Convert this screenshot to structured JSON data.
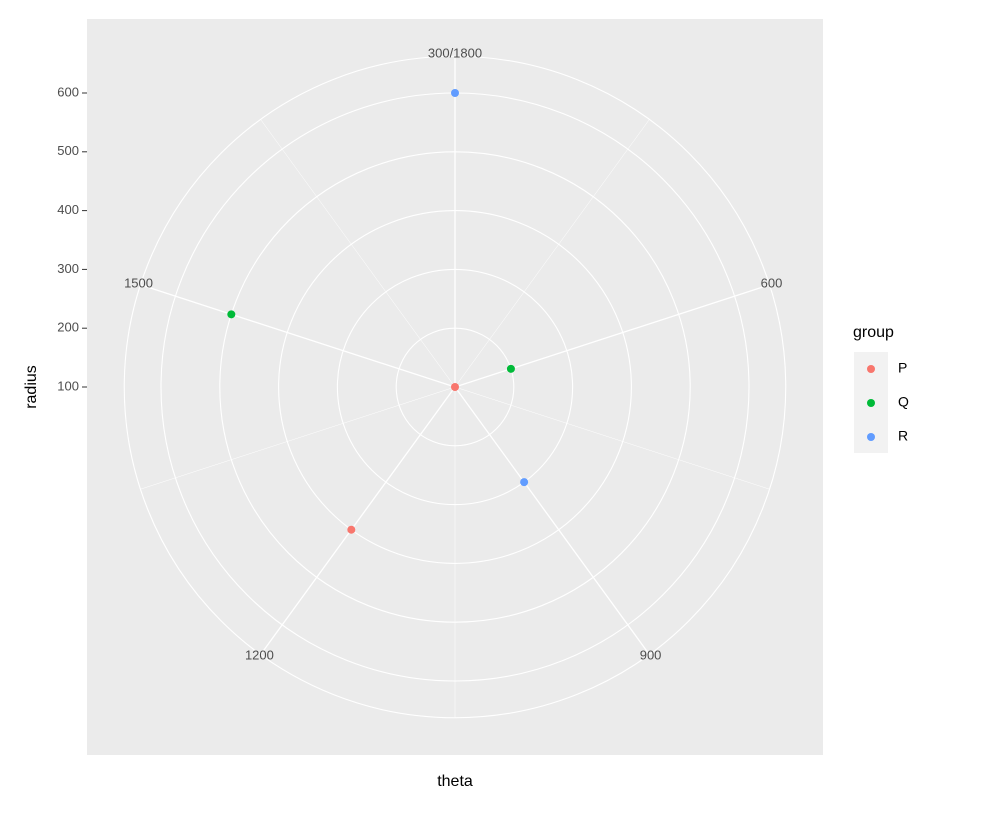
{
  "chart_data": {
    "type": "polar-scatter",
    "x_label": "theta",
    "y_label": "radius",
    "xlim": [
      300,
      1800
    ],
    "xticks": [
      {
        "value": 300,
        "label": "300/1800"
      },
      600,
      900,
      1200,
      1500
    ],
    "ylim": [
      100,
      600
    ],
    "yticks": [
      100,
      200,
      300,
      400,
      500,
      600
    ],
    "legend_title": "group",
    "series": [
      {
        "name": "P",
        "color": "#F8766D",
        "x": [
          300,
          1200
        ],
        "values": [
          100,
          400
        ]
      },
      {
        "name": "Q",
        "color": "#00BA38",
        "x": [
          600,
          1500
        ],
        "values": [
          200,
          500
        ]
      },
      {
        "name": "R",
        "color": "#619CFF",
        "x": [
          300,
          900
        ],
        "values": [
          600,
          300
        ]
      }
    ]
  }
}
